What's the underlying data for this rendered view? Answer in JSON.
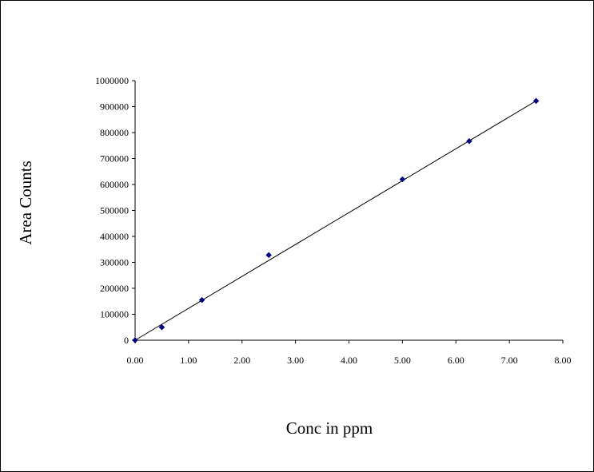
{
  "chart_data": {
    "type": "scatter",
    "title": "",
    "xlabel": "Conc in ppm",
    "ylabel": "Area Counts",
    "xlim": [
      0,
      8
    ],
    "ylim": [
      0,
      1000000
    ],
    "x_ticks": [
      "0.00",
      "1.00",
      "2.00",
      "3.00",
      "4.00",
      "5.00",
      "6.00",
      "7.00",
      "8.00"
    ],
    "y_ticks": [
      "0",
      "100000",
      "200000",
      "300000",
      "400000",
      "500000",
      "600000",
      "700000",
      "800000",
      "900000",
      "1000000"
    ],
    "grid": false,
    "legend": "none",
    "series": [
      {
        "x": [
          0,
          0.5,
          1.25,
          2.5,
          5.0,
          6.25,
          7.5
        ],
        "y": [
          0,
          50000,
          155000,
          328000,
          620000,
          767000,
          922000
        ],
        "marker": "diamond",
        "color": "#000080"
      }
    ],
    "trendline": {
      "type": "linear",
      "x": [
        0,
        7.5
      ],
      "y": [
        0,
        922000
      ],
      "color": "#000000"
    }
  }
}
